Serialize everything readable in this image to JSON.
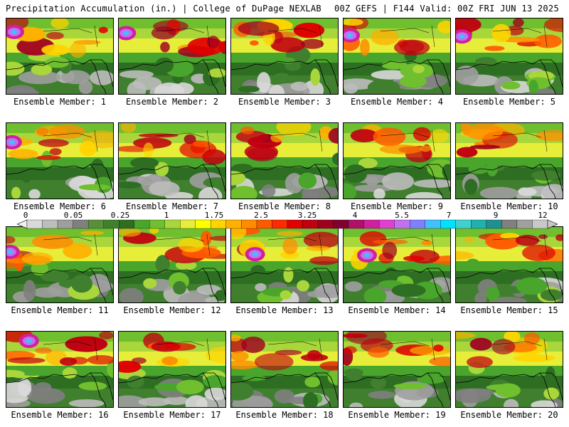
{
  "header": {
    "left": "Precipitation Accumulation (in.) | College of DuPage NEXLAB",
    "right": "00Z GEFS | F144 Valid: 00Z FRI JUN 13 2025"
  },
  "panels": [
    {
      "label": "Ensemble Member: 1"
    },
    {
      "label": "Ensemble Member: 2"
    },
    {
      "label": "Ensemble Member: 3"
    },
    {
      "label": "Ensemble Member: 4"
    },
    {
      "label": "Ensemble Member: 5"
    },
    {
      "label": "Ensemble Member: 6"
    },
    {
      "label": "Ensemble Member: 7"
    },
    {
      "label": "Ensemble Member: 8"
    },
    {
      "label": "Ensemble Member: 9"
    },
    {
      "label": "Ensemble Member: 10"
    },
    {
      "label": "Ensemble Member: 11"
    },
    {
      "label": "Ensemble Member: 12"
    },
    {
      "label": "Ensemble Member: 13"
    },
    {
      "label": "Ensemble Member: 14"
    },
    {
      "label": "Ensemble Member: 15"
    },
    {
      "label": "Ensemble Member: 16"
    },
    {
      "label": "Ensemble Member: 17"
    },
    {
      "label": "Ensemble Member: 18"
    },
    {
      "label": "Ensemble Member: 19"
    },
    {
      "label": "Ensemble Member: 20"
    }
  ],
  "colorbar": {
    "tick_labels": [
      "0",
      "0.05",
      "0.25",
      "1",
      "1.75",
      "2.5",
      "3.25",
      "4",
      "5.5",
      "7",
      "9",
      "12"
    ],
    "colors": [
      "#d9d9d9",
      "#bdbdbd",
      "#9e9e9e",
      "#808080",
      "#5a8f3a",
      "#3f7f2e",
      "#2e6e22",
      "#4aa52c",
      "#6fbf2e",
      "#a9d63a",
      "#e6ee3a",
      "#ffff00",
      "#ffd400",
      "#ffb000",
      "#ff8c00",
      "#ff5a00",
      "#ff2a00",
      "#e00000",
      "#c00010",
      "#a00020",
      "#800030",
      "#b0106a",
      "#d020a0",
      "#e040d0",
      "#c070f0",
      "#8080ff",
      "#40c0ff",
      "#00e0ff",
      "#40d0d0",
      "#20b0b0",
      "#208f8f",
      "#808080",
      "#a0a0a0",
      "#c8c8c8"
    ]
  }
}
